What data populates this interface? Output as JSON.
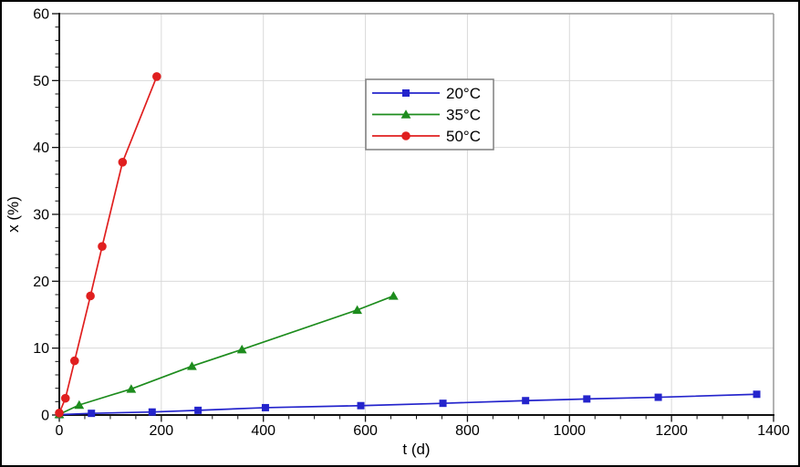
{
  "figure": {
    "background": "#ffffff",
    "frame_color": "#000000",
    "plot_border_color": "#999999",
    "axis_color": "#111111",
    "grid_color": "#d9d9d9",
    "text_color": "#000000"
  },
  "chart_data": {
    "type": "line",
    "title": "",
    "xlabel": "t (d)",
    "ylabel": "x (%)",
    "xlim": [
      0,
      1400
    ],
    "ylim": [
      0,
      60
    ],
    "xticks": [
      0,
      200,
      400,
      600,
      800,
      1000,
      1200,
      1400
    ],
    "yticks": [
      0,
      10,
      20,
      30,
      40,
      50,
      60
    ],
    "x_minor_step": 50,
    "y_minor_step": 2,
    "grid": "major",
    "legend": {
      "position": "top-center",
      "border_color": "#7f7f7f",
      "background": "#ffffff"
    },
    "series": [
      {
        "name": "20°C",
        "color": "#2424cc",
        "marker": "square",
        "points": [
          [
            0,
            0.05
          ],
          [
            63,
            0.25
          ],
          [
            182,
            0.45
          ],
          [
            272,
            0.7
          ],
          [
            404,
            1.1
          ],
          [
            591,
            1.4
          ],
          [
            752,
            1.75
          ],
          [
            914,
            2.15
          ],
          [
            1034,
            2.4
          ],
          [
            1174,
            2.65
          ],
          [
            1367,
            3.1
          ]
        ]
      },
      {
        "name": "35°C",
        "color": "#1d8c1d",
        "marker": "triangle",
        "points": [
          [
            0,
            0.1
          ],
          [
            39,
            1.5
          ],
          [
            141,
            3.9
          ],
          [
            260,
            7.3
          ],
          [
            358,
            9.8
          ],
          [
            584,
            15.7
          ],
          [
            655,
            17.8
          ]
        ]
      },
      {
        "name": "50°C",
        "color": "#e01f1f",
        "marker": "circle",
        "points": [
          [
            0,
            0.3
          ],
          [
            12,
            2.5
          ],
          [
            30,
            8.1
          ],
          [
            61,
            17.8
          ],
          [
            84,
            25.2
          ],
          [
            124,
            37.8
          ],
          [
            191,
            50.6
          ]
        ]
      }
    ]
  }
}
